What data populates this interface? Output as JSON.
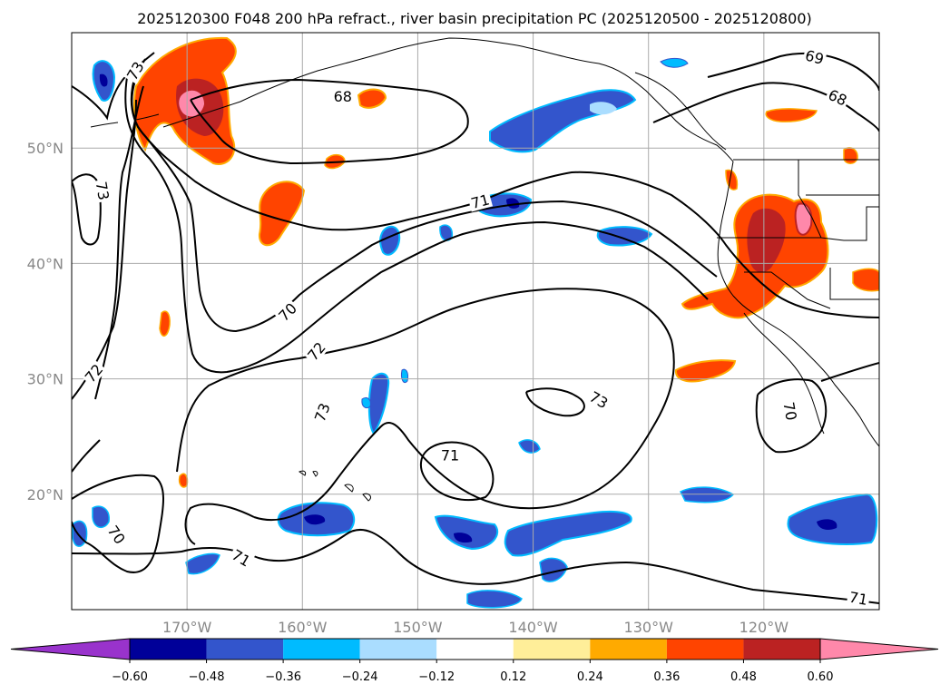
{
  "title": "2025120300 F048 200 hPa refract., river basin precipitation PC (2025120500 - 2025120800)",
  "map": {
    "lon_range": [
      -180,
      -110
    ],
    "lat_range": [
      10,
      60
    ],
    "lon_ticks": [
      {
        "value": -170,
        "label": "170°W"
      },
      {
        "value": -160,
        "label": "160°W"
      },
      {
        "value": -150,
        "label": "150°W"
      },
      {
        "value": -140,
        "label": "140°W"
      },
      {
        "value": -130,
        "label": "130°W"
      },
      {
        "value": -120,
        "label": "120°W"
      }
    ],
    "lat_ticks": [
      {
        "value": 20,
        "label": "20°N"
      },
      {
        "value": 30,
        "label": "30°N"
      },
      {
        "value": 40,
        "label": "40°N"
      },
      {
        "value": 50,
        "label": "50°N"
      }
    ],
    "contour_labels": [
      {
        "text": "73",
        "lon": -174.5,
        "lat": 56.7,
        "angle": -60
      },
      {
        "text": "68",
        "lon": -156.5,
        "lat": 54.5,
        "angle": 0
      },
      {
        "text": "69",
        "lon": -115.6,
        "lat": 57.9,
        "angle": 15
      },
      {
        "text": "68",
        "lon": -113.6,
        "lat": 54.4,
        "angle": 25
      },
      {
        "text": "73",
        "lon": -177.3,
        "lat": 46.3,
        "angle": 80
      },
      {
        "text": "71",
        "lon": -144.6,
        "lat": 45.4,
        "angle": -15
      },
      {
        "text": "70",
        "lon": -161.3,
        "lat": 35.8,
        "angle": -45
      },
      {
        "text": "72",
        "lon": -158.8,
        "lat": 32.4,
        "angle": -50
      },
      {
        "text": "72",
        "lon": -178.1,
        "lat": 30.5,
        "angle": -50
      },
      {
        "text": "73",
        "lon": -134.3,
        "lat": 28.2,
        "angle": 30
      },
      {
        "text": "73",
        "lon": -158.3,
        "lat": 27.1,
        "angle": -70
      },
      {
        "text": "70",
        "lon": -117.7,
        "lat": 27.2,
        "angle": 80
      },
      {
        "text": "71",
        "lon": -147.2,
        "lat": 23.4,
        "angle": 0
      },
      {
        "text": "70",
        "lon": -176.1,
        "lat": 16.5,
        "angle": 55
      },
      {
        "text": "71",
        "lon": -165.3,
        "lat": 14.5,
        "angle": 30
      },
      {
        "text": "71",
        "lon": -111.8,
        "lat": 11.0,
        "angle": 10
      }
    ]
  },
  "colorbar": {
    "levels": [
      -0.6,
      -0.48,
      -0.36,
      -0.24,
      -0.12,
      0.12,
      0.24,
      0.36,
      0.48,
      0.6
    ],
    "tick_labels": [
      "−0.60",
      "−0.48",
      "−0.36",
      "−0.24",
      "−0.12",
      "0.12",
      "0.24",
      "0.36",
      "0.48",
      "0.60"
    ],
    "colors": [
      "#9933cc",
      "#000099",
      "#3355cc",
      "#00bbff",
      "#aaddff",
      "#ffffff",
      "#ffee99",
      "#ffaa00",
      "#ff4400",
      "#bb2222",
      "#ff88aa"
    ]
  }
}
